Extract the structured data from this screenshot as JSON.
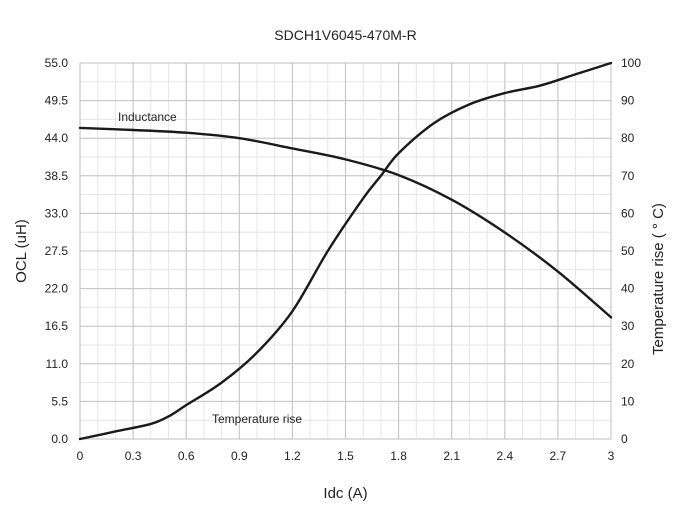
{
  "chart_data": {
    "type": "line",
    "title": "SDCH1V6045-470M-R",
    "xlabel": "Idc (A)",
    "ylabel_left": "OCL (uH)",
    "ylabel_right": "Temperature rise ( ° C)",
    "xlim": [
      0,
      3
    ],
    "ylim_left": [
      0,
      55
    ],
    "ylim_right": [
      0,
      100
    ],
    "x_ticks": [
      "0",
      "0.3",
      "0.6",
      "0.9",
      "1.2",
      "1.5",
      "1.8",
      "2.1",
      "2.4",
      "2.7",
      "3"
    ],
    "y_ticks_left": [
      "0.0",
      "5.5",
      "11.0",
      "16.5",
      "22.0",
      "27.5",
      "33.0",
      "38.5",
      "44.0",
      "49.5",
      "55.0"
    ],
    "y_ticks_right": [
      "0",
      "10",
      "20",
      "30",
      "40",
      "50",
      "60",
      "70",
      "80",
      "90",
      "100"
    ],
    "grid": true,
    "series": [
      {
        "name": "Inductance",
        "axis": "left",
        "color": "#1a1a1a",
        "x": [
          0,
          0.3,
          0.6,
          0.9,
          1.2,
          1.5,
          1.8,
          2.1,
          2.4,
          2.7,
          3.0
        ],
        "y": [
          45.5,
          45.2,
          44.8,
          44.0,
          42.5,
          40.9,
          38.6,
          35.0,
          30.2,
          24.5,
          17.8
        ]
      },
      {
        "name": "Temperature rise",
        "axis": "right",
        "color": "#1a1a1a",
        "x": [
          0,
          0.2,
          0.4,
          0.5,
          0.6,
          0.8,
          1.0,
          1.2,
          1.4,
          1.6,
          1.7,
          1.8,
          2.0,
          2.2,
          2.4,
          2.6,
          2.8,
          3.0
        ],
        "y": [
          0,
          2,
          4,
          6,
          9,
          15,
          23,
          34,
          50,
          64,
          70,
          76,
          84,
          89,
          92,
          94,
          97,
          100
        ]
      }
    ]
  }
}
